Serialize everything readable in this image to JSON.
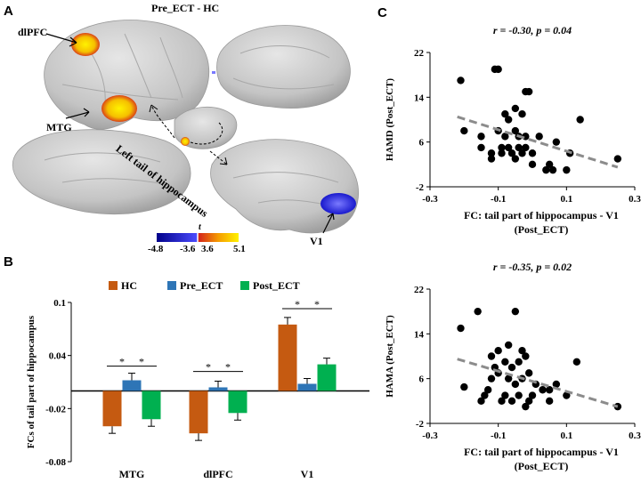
{
  "panels": {
    "a": "A",
    "b": "B",
    "c": "C"
  },
  "panel_a": {
    "title": "Pre_ECT - HC",
    "labels": {
      "dlpfc": "dlPFC",
      "mtg": "MTG",
      "hippocampus": "Left tail of hippocampus",
      "v1": "V1"
    },
    "colorbar": {
      "t_label": "t",
      "ticks": [
        "-4.8",
        "-3.6",
        "3.6",
        "5.1"
      ]
    },
    "colors": {
      "surface": "#c9c9c9",
      "hot_low": "#d21e1e",
      "hot_high": "#fff200",
      "cold_low": "#1010c8",
      "cold_high": "#7a7aff"
    }
  },
  "chart_data": [
    {
      "type": "bar",
      "panel": "B",
      "ylabel": "FCs of tail part of hippocampus",
      "categories": [
        "MTG",
        "dlPFC",
        "V1"
      ],
      "series": [
        {
          "name": "HC",
          "color": "#c55a11",
          "values": [
            -0.04,
            -0.048,
            0.075
          ],
          "errors": [
            0.008,
            0.008,
            0.008
          ]
        },
        {
          "name": "Pre_ECT",
          "color": "#2e75b6",
          "values": [
            0.012,
            0.004,
            0.008
          ],
          "errors": [
            0.008,
            0.007,
            0.006
          ]
        },
        {
          "name": "Post_ECT",
          "color": "#00b050",
          "values": [
            -0.032,
            -0.025,
            0.03
          ],
          "errors": [
            0.008,
            0.008,
            0.007
          ]
        }
      ],
      "ylim": [
        -0.08,
        0.1
      ],
      "yticks": [
        "-0.08",
        "-0.02",
        "0.04",
        "0.1"
      ],
      "annotations": [
        "*",
        "*",
        "*",
        "*",
        "*",
        "*"
      ]
    },
    {
      "type": "scatter",
      "panel": "C-top",
      "title": "r = -0.30, p = 0.04",
      "xlabel": "FC: tail part of hippocampus - V1",
      "xlabel2": "(Post_ECT)",
      "ylabel": "HAMD (Post_ECT)",
      "xlim": [
        -0.3,
        0.3
      ],
      "ylim": [
        -2,
        22
      ],
      "xticks": [
        "-0.3",
        "-0.1",
        "0.1",
        "0.3"
      ],
      "yticks": [
        "-2",
        "6",
        "14",
        "22"
      ],
      "fit": {
        "x": [
          -0.22,
          0.25
        ],
        "y": [
          10.5,
          1.5
        ]
      },
      "x": [
        -0.21,
        -0.2,
        -0.15,
        -0.15,
        -0.12,
        -0.12,
        -0.11,
        -0.1,
        -0.1,
        -0.09,
        -0.09,
        -0.08,
        -0.08,
        -0.07,
        -0.07,
        -0.06,
        -0.05,
        -0.05,
        -0.05,
        -0.04,
        -0.04,
        -0.03,
        -0.03,
        -0.02,
        -0.02,
        -0.02,
        -0.01,
        0.0,
        0.0,
        0.02,
        0.04,
        0.05,
        0.06,
        0.07,
        0.1,
        0.11,
        0.14,
        0.25
      ],
      "y": [
        17,
        8,
        5,
        7,
        4,
        3,
        19,
        19,
        8,
        4,
        5,
        11,
        7,
        5,
        10,
        4,
        12,
        8,
        3,
        7,
        5,
        11,
        4,
        15,
        7,
        5,
        15,
        2,
        4,
        7,
        1,
        2,
        1,
        6,
        1,
        4,
        10,
        3
      ]
    },
    {
      "type": "scatter",
      "panel": "C-bottom",
      "title": "r = -0.35, p = 0.02",
      "xlabel": "FC: tail part of hippocampus - V1",
      "xlabel2": "(Post_ECT)",
      "ylabel": "HAMA (Post_ECT)",
      "xlim": [
        -0.3,
        0.3
      ],
      "ylim": [
        -2,
        22
      ],
      "xticks": [
        "-0.3",
        "-0.1",
        "0.1",
        "0.3"
      ],
      "yticks": [
        "-2",
        "6",
        "14",
        "22"
      ],
      "fit": {
        "x": [
          -0.22,
          0.25
        ],
        "y": [
          9.5,
          1.0
        ]
      },
      "x": [
        -0.21,
        -0.2,
        -0.16,
        -0.15,
        -0.14,
        -0.13,
        -0.12,
        -0.12,
        -0.11,
        -0.1,
        -0.1,
        -0.09,
        -0.08,
        -0.08,
        -0.07,
        -0.07,
        -0.06,
        -0.06,
        -0.05,
        -0.05,
        -0.04,
        -0.04,
        -0.03,
        -0.03,
        -0.02,
        -0.02,
        -0.01,
        -0.01,
        0.0,
        0.01,
        0.03,
        0.05,
        0.05,
        0.07,
        0.1,
        0.13,
        0.25
      ],
      "y": [
        15,
        4.5,
        18,
        2,
        3,
        4,
        10,
        6,
        8,
        11,
        7,
        2,
        3,
        9,
        6,
        12,
        8,
        2,
        5,
        18,
        9,
        3,
        6,
        11,
        1,
        10,
        2,
        7,
        3,
        5,
        4,
        2,
        4,
        5,
        3,
        9,
        1
      ]
    }
  ]
}
